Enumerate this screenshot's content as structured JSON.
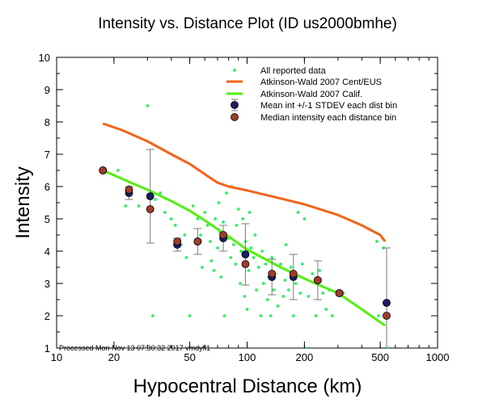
{
  "chart_data": {
    "type": "scatter",
    "title": "Intensity vs. Distance Plot (ID us2000bmhe)",
    "xlabel": "Hypocentral Distance (km)",
    "ylabel": "Intensity",
    "x_scale": "log",
    "xlim": [
      10,
      1000
    ],
    "ylim": [
      1,
      10
    ],
    "x_tick_labels": [
      "10",
      "20",
      "50",
      "100",
      "200",
      "500",
      "1000"
    ],
    "y_tick_labels": [
      "1",
      "2",
      "3",
      "4",
      "5",
      "6",
      "7",
      "8",
      "9",
      "10"
    ],
    "footer": "Processed Mon Nov 13 07:30:32 2017 vmdyfi1",
    "legend_position": "top-right",
    "colors": {
      "all_data": "#33ee66",
      "cent_eus": "#f26419",
      "calif": "#55ee11",
      "mean": "#1c1c66",
      "median": "#a03c2c",
      "error_bar": "#7a7a7a"
    },
    "series": [
      {
        "name": "All reported data",
        "kind": "points",
        "points": [
          [
            17.5,
            6.5
          ],
          [
            21,
            6.5
          ],
          [
            23,
            5.4
          ],
          [
            24,
            6.0
          ],
          [
            27,
            5.4
          ],
          [
            30,
            8.5
          ],
          [
            32,
            2.0
          ],
          [
            33,
            5.6
          ],
          [
            35,
            5.8
          ],
          [
            37,
            5.2
          ],
          [
            40,
            5.0
          ],
          [
            42,
            4.8
          ],
          [
            45,
            4.2
          ],
          [
            47,
            4.5
          ],
          [
            48,
            3.8
          ],
          [
            50,
            2.0
          ],
          [
            52,
            5.4
          ],
          [
            55,
            5.0
          ],
          [
            57,
            4.5
          ],
          [
            58,
            3.5
          ],
          [
            60,
            5.2
          ],
          [
            62,
            4.8
          ],
          [
            64,
            4.3
          ],
          [
            65,
            3.7
          ],
          [
            67,
            3.4
          ],
          [
            68,
            5.0
          ],
          [
            70,
            4.1
          ],
          [
            71,
            5.5
          ],
          [
            72,
            4.6
          ],
          [
            73,
            3.2
          ],
          [
            75,
            4.9
          ],
          [
            76,
            2.0
          ],
          [
            78,
            5.8
          ],
          [
            80,
            4.4
          ],
          [
            82,
            3.8
          ],
          [
            83,
            6.0
          ],
          [
            85,
            4.2
          ],
          [
            87,
            3.6
          ],
          [
            88,
            4.8
          ],
          [
            90,
            5.3
          ],
          [
            92,
            3.0
          ],
          [
            93,
            4.0
          ],
          [
            95,
            5.0
          ],
          [
            97,
            2.6
          ],
          [
            98,
            4.3
          ],
          [
            100,
            2.2
          ],
          [
            102,
            3.4
          ],
          [
            103,
            5.2
          ],
          [
            105,
            4.1
          ],
          [
            108,
            3.8
          ],
          [
            110,
            4.5
          ],
          [
            112,
            2.8
          ],
          [
            115,
            3.5
          ],
          [
            118,
            2.0
          ],
          [
            120,
            4.0
          ],
          [
            122,
            3.0
          ],
          [
            125,
            3.6
          ],
          [
            128,
            2.5
          ],
          [
            130,
            3.2
          ],
          [
            133,
            2.0
          ],
          [
            135,
            3.8
          ],
          [
            138,
            2.8
          ],
          [
            140,
            3.3
          ],
          [
            145,
            2.3
          ],
          [
            150,
            3.6
          ],
          [
            155,
            2.6
          ],
          [
            158,
            3.1
          ],
          [
            160,
            4.2
          ],
          [
            165,
            2.8
          ],
          [
            170,
            3.5
          ],
          [
            175,
            2.0
          ],
          [
            180,
            3.0
          ],
          [
            185,
            5.2
          ],
          [
            190,
            2.7
          ],
          [
            195,
            3.6
          ],
          [
            200,
            5.0
          ],
          [
            205,
            1.0
          ],
          [
            210,
            2.6
          ],
          [
            220,
            3.3
          ],
          [
            230,
            2.0
          ],
          [
            240,
            3.4
          ],
          [
            250,
            2.7
          ],
          [
            260,
            2.2
          ],
          [
            270,
            2.8
          ],
          [
            280,
            2.0
          ],
          [
            300,
            2.7
          ],
          [
            320,
            2.7
          ],
          [
            480,
            4.3
          ],
          [
            490,
            2.0
          ],
          [
            520,
            4.1
          ],
          [
            550,
            1.0
          ]
        ]
      },
      {
        "name": "Atkinson-Wald 2007 Cent/EUS",
        "kind": "line",
        "points": [
          [
            17.5,
            7.95
          ],
          [
            22,
            7.75
          ],
          [
            30,
            7.4
          ],
          [
            40,
            7.0
          ],
          [
            50,
            6.7
          ],
          [
            60,
            6.38
          ],
          [
            70,
            6.12
          ],
          [
            80,
            6.0
          ],
          [
            100,
            5.88
          ],
          [
            150,
            5.63
          ],
          [
            200,
            5.45
          ],
          [
            300,
            5.12
          ],
          [
            400,
            4.8
          ],
          [
            500,
            4.5
          ],
          [
            530,
            4.3
          ]
        ]
      },
      {
        "name": "Atkinson-Wald 2007 Calif.",
        "kind": "line",
        "points": [
          [
            17.5,
            6.5
          ],
          [
            25,
            6.1
          ],
          [
            30,
            5.9
          ],
          [
            40,
            5.55
          ],
          [
            50,
            5.25
          ],
          [
            60,
            4.95
          ],
          [
            80,
            4.45
          ],
          [
            100,
            4.05
          ],
          [
            150,
            3.5
          ],
          [
            200,
            3.15
          ],
          [
            300,
            2.7
          ],
          [
            400,
            2.2
          ],
          [
            500,
            1.8
          ],
          [
            530,
            1.7
          ]
        ]
      },
      {
        "name": "Mean int +/-1 STDEV each dist bin",
        "kind": "errorbar",
        "points": [
          {
            "x": 17.5,
            "y": 6.5,
            "sd": 0
          },
          {
            "x": 24,
            "y": 5.8,
            "sd": 0.2
          },
          {
            "x": 31,
            "y": 5.7,
            "sd": 1.45
          },
          {
            "x": 43,
            "y": 4.2,
            "sd": 0.2
          },
          {
            "x": 55,
            "y": 4.3,
            "sd": 0.4
          },
          {
            "x": 75,
            "y": 4.4,
            "sd": 0.4
          },
          {
            "x": 98,
            "y": 3.9,
            "sd": 0.95
          },
          {
            "x": 135,
            "y": 3.2,
            "sd": 0.55
          },
          {
            "x": 175,
            "y": 3.2,
            "sd": 0.7
          },
          {
            "x": 235,
            "y": 3.1,
            "sd": 0.6
          },
          {
            "x": 305,
            "y": 2.7,
            "sd": 0.05
          },
          {
            "x": 540,
            "y": 2.4,
            "sd": 1.7
          }
        ]
      },
      {
        "name": "Median intensity each distance bin",
        "kind": "points",
        "points": [
          [
            17.5,
            6.5
          ],
          [
            24,
            5.9
          ],
          [
            31,
            5.3
          ],
          [
            43,
            4.3
          ],
          [
            55,
            4.3
          ],
          [
            75,
            4.5
          ],
          [
            98,
            3.6
          ],
          [
            135,
            3.3
          ],
          [
            175,
            3.3
          ],
          [
            235,
            3.1
          ],
          [
            305,
            2.7
          ],
          [
            540,
            2.0
          ]
        ]
      }
    ]
  }
}
